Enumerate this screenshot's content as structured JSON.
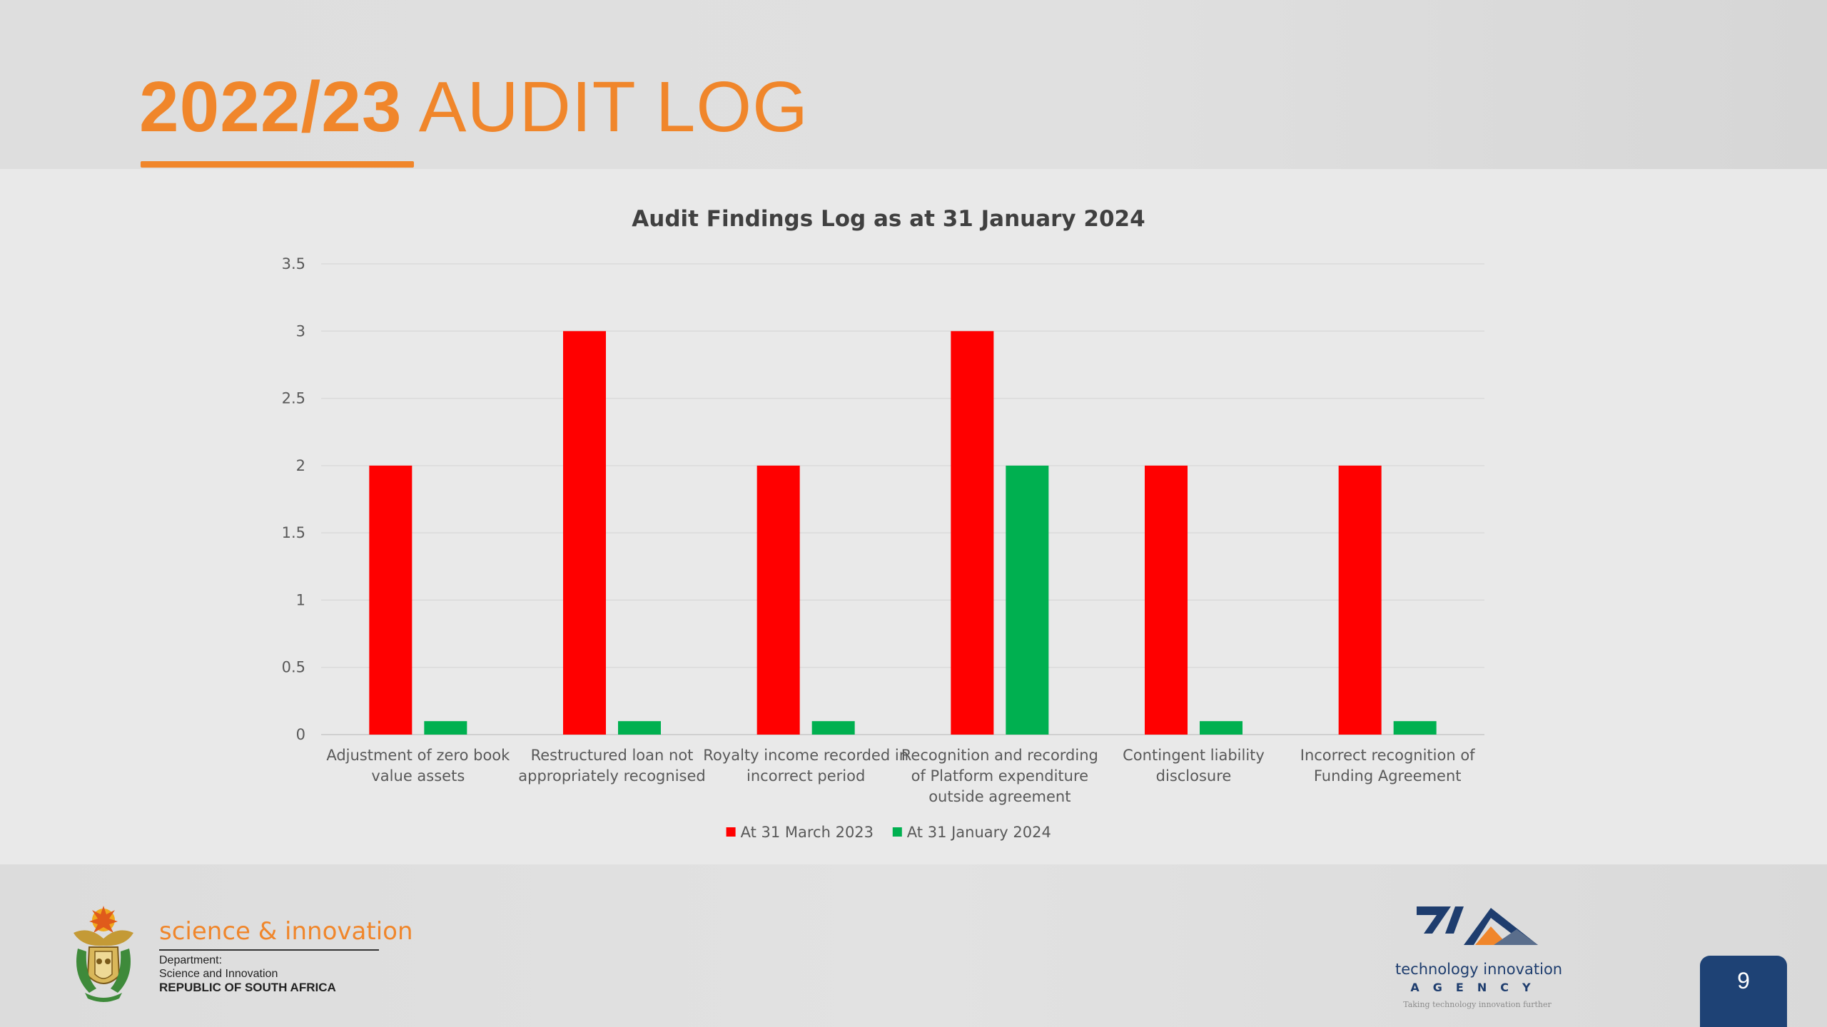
{
  "slide": {
    "title_bold": "2022/23",
    "title_rest": "AUDIT LOG",
    "page_number": "9",
    "accent_color": "#f0862b"
  },
  "footer": {
    "department": {
      "name": "science & innovation",
      "line1": "Department:",
      "line2": "Science and Innovation",
      "line3": "REPUBLIC OF SOUTH AFRICA"
    },
    "agency": {
      "name": "technology innovation",
      "agency_word": "AGENCY",
      "tagline": "Taking technology innovation further"
    }
  },
  "chart_data": {
    "type": "bar",
    "title": "Audit Findings Log as at 31 January 2024",
    "xlabel": "",
    "ylabel": "",
    "ylim": [
      0,
      3.5
    ],
    "yticks": [
      0,
      0.5,
      1,
      1.5,
      2,
      2.5,
      3,
      3.5
    ],
    "grid": true,
    "legend_position": "bottom",
    "categories": [
      [
        "Adjustment of zero book",
        "value assets"
      ],
      [
        "Restructured loan not",
        "appropriately recognised"
      ],
      [
        "Royalty income recorded in",
        "incorrect period"
      ],
      [
        "Recognition and recording",
        "of Platform expenditure",
        "outside agreement"
      ],
      [
        "Contingent liability",
        "disclosure"
      ],
      [
        "Incorrect recognition of",
        "Funding Agreement"
      ]
    ],
    "series": [
      {
        "name": "At 31 March 2023",
        "color": "#ff0000",
        "values": [
          2,
          3,
          2,
          3,
          2,
          2
        ]
      },
      {
        "name": "At 31 January 2024",
        "color": "#00b050",
        "values": [
          0.1,
          0.1,
          0.1,
          2,
          0.1,
          0.1
        ]
      }
    ]
  }
}
